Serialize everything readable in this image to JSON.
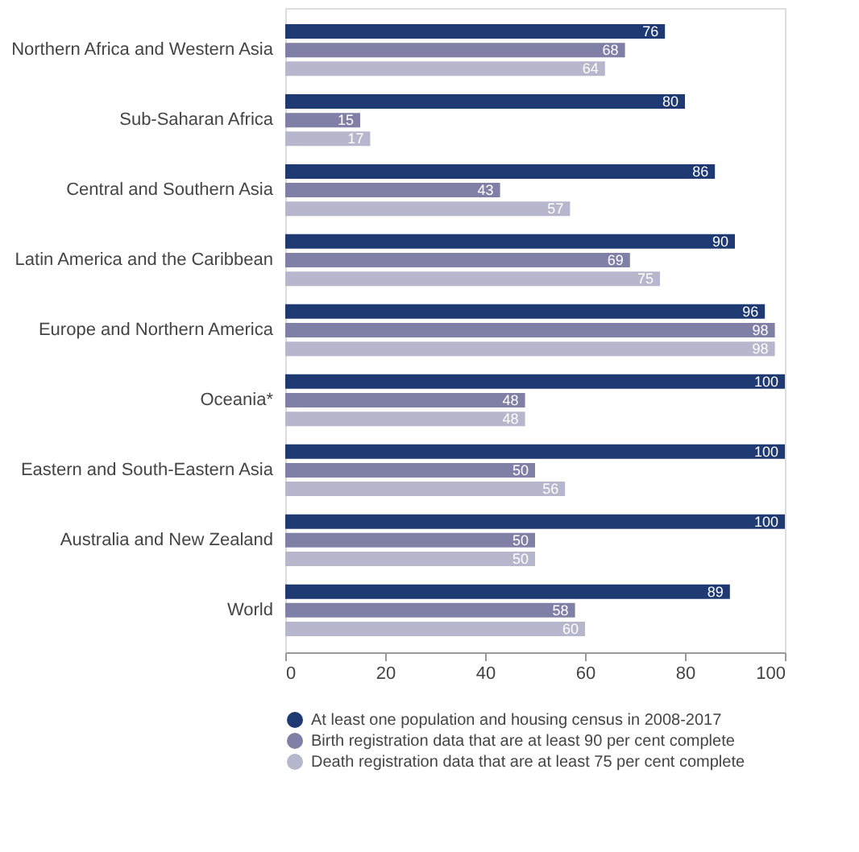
{
  "chart_data": {
    "type": "bar",
    "orientation": "horizontal",
    "categories": [
      "Northern Africa and Western Asia",
      "Sub-Saharan Africa",
      "Central and Southern Asia",
      "Latin America and the Caribbean",
      "Europe and Northern America",
      "Oceania*",
      "Eastern and South-Eastern Asia",
      "Australia and New Zealand",
      "World"
    ],
    "series": [
      {
        "name": "At least one population and housing census in 2008-2017",
        "color": "#1f3a73",
        "values": [
          76,
          80,
          86,
          90,
          96,
          100,
          100,
          100,
          89
        ]
      },
      {
        "name": "Birth registration data that are at least 90 per cent complete",
        "color": "#8080a6",
        "values": [
          68,
          15,
          43,
          69,
          98,
          48,
          50,
          50,
          58
        ]
      },
      {
        "name": "Death registration data that are at least 75 per cent complete",
        "color": "#b6b6cc",
        "values": [
          64,
          17,
          57,
          75,
          98,
          48,
          56,
          50,
          60
        ]
      }
    ],
    "xlim": [
      0,
      100
    ],
    "xticks": [
      0,
      20,
      40,
      60,
      80,
      100
    ],
    "data_labels": true,
    "grid": false,
    "legend": "bottom"
  }
}
